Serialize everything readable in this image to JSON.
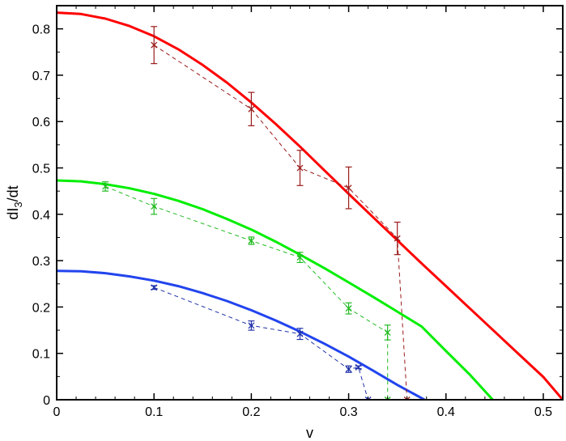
{
  "chart_data": {
    "type": "line",
    "xlabel": "v",
    "ylabel": "dI",
    "ylabel_sub": "3",
    "ylabel_tail": "/dt",
    "xlim": [
      0,
      0.52
    ],
    "ylim": [
      0,
      0.85
    ],
    "xticks": [
      0,
      0.1,
      0.2,
      0.3,
      0.4,
      0.5
    ],
    "xtick_labels": [
      "0",
      "0.1",
      "0.2",
      "0.3",
      "0.4",
      "0.5"
    ],
    "yticks": [
      0,
      0.1,
      0.2,
      0.3,
      0.4,
      0.5,
      0.6,
      0.7,
      0.8
    ],
    "ytick_labels": [
      "0",
      "0.1",
      "0.2",
      "0.3",
      "0.4",
      "0.5",
      "0.6",
      "0.7",
      "0.8"
    ],
    "grid": false,
    "legend": "none",
    "series": [
      {
        "kind": "smooth-curve",
        "color": "#ff0000",
        "x": [
          0,
          0.025,
          0.05,
          0.075,
          0.1,
          0.125,
          0.15,
          0.175,
          0.2,
          0.225,
          0.25,
          0.275,
          0.3,
          0.325,
          0.35,
          0.375,
          0.4,
          0.425,
          0.45,
          0.475,
          0.5,
          0.52
        ],
        "y": [
          0.835,
          0.832,
          0.822,
          0.806,
          0.784,
          0.756,
          0.722,
          0.684,
          0.641,
          0.595,
          0.546,
          0.495,
          0.444,
          0.394,
          0.344,
          0.294,
          0.245,
          0.196,
          0.147,
          0.098,
          0.049,
          0.0
        ]
      },
      {
        "kind": "smooth-curve",
        "color": "#00ee00",
        "x": [
          0,
          0.025,
          0.05,
          0.075,
          0.1,
          0.125,
          0.15,
          0.175,
          0.2,
          0.225,
          0.25,
          0.275,
          0.3,
          0.325,
          0.35,
          0.375,
          0.4,
          0.425,
          0.448
        ],
        "y": [
          0.473,
          0.471,
          0.465,
          0.456,
          0.444,
          0.429,
          0.411,
          0.39,
          0.367,
          0.341,
          0.313,
          0.284,
          0.253,
          0.222,
          0.19,
          0.158,
          0.105,
          0.053,
          0.0
        ]
      },
      {
        "kind": "smooth-curve",
        "color": "#2244ee",
        "x": [
          0,
          0.025,
          0.05,
          0.075,
          0.1,
          0.125,
          0.15,
          0.175,
          0.2,
          0.225,
          0.25,
          0.275,
          0.3,
          0.325,
          0.35,
          0.378
        ],
        "y": [
          0.278,
          0.277,
          0.273,
          0.266,
          0.257,
          0.245,
          0.23,
          0.213,
          0.193,
          0.171,
          0.147,
          0.121,
          0.093,
          0.063,
          0.032,
          0.0
        ]
      },
      {
        "kind": "dashed-errorbar",
        "color": "#9b1b1b",
        "x": [
          0.1,
          0.2,
          0.25,
          0.3,
          0.35,
          0.36
        ],
        "y": [
          0.765,
          0.627,
          0.5,
          0.457,
          0.348,
          0.0
        ],
        "err": [
          0.04,
          0.036,
          0.038,
          0.045,
          0.035,
          0.0
        ]
      },
      {
        "kind": "dashed-errorbar",
        "color": "#22bb22",
        "x": [
          0.05,
          0.1,
          0.2,
          0.25,
          0.3,
          0.34,
          0.34
        ],
        "y": [
          0.46,
          0.417,
          0.343,
          0.307,
          0.197,
          0.145,
          0.0
        ],
        "err": [
          0.01,
          0.017,
          0.008,
          0.011,
          0.012,
          0.016,
          0.0
        ]
      },
      {
        "kind": "dashed-errorbar",
        "color": "#2233aa",
        "x": [
          0.1,
          0.2,
          0.25,
          0.3,
          0.31,
          0.32
        ],
        "y": [
          0.242,
          0.16,
          0.142,
          0.066,
          0.07,
          0.0
        ],
        "err": [
          0.004,
          0.01,
          0.012,
          0.007,
          0.003,
          0.0
        ]
      }
    ]
  }
}
